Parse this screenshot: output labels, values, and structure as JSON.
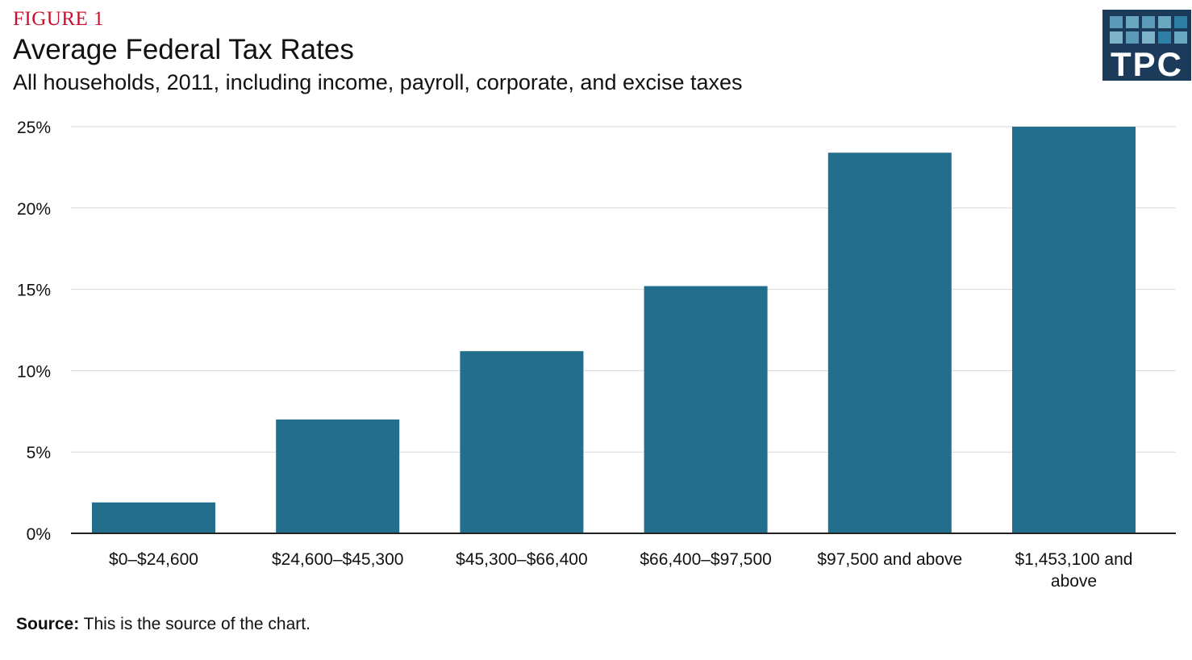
{
  "figure_label": "FIGURE 1",
  "logo_text": "TPC",
  "colors": {
    "bar": "#236e8c",
    "figure_label": "#c8102e",
    "logo_bg": "#1c3a5a",
    "grid": "#d9d9d9",
    "axis": "#222222"
  },
  "source": {
    "label": "Source:",
    "text": " This is the source of the chart."
  },
  "chart_data": {
    "type": "bar",
    "title": "Average Federal Tax Rates",
    "subtitle": "All households, 2011, including income, payroll, corporate, and excise taxes",
    "xlabel": "",
    "ylabel": "",
    "ylim": [
      0,
      25
    ],
    "yticks": [
      0,
      5,
      10,
      15,
      20,
      25
    ],
    "ytick_labels": [
      "0%",
      "5%",
      "10%",
      "15%",
      "20%",
      "25%"
    ],
    "grid": true,
    "categories": [
      [
        "$0–$24,600"
      ],
      [
        "$24,600–$45,300"
      ],
      [
        "$45,300–$66,400"
      ],
      [
        "$66,400–$97,500"
      ],
      [
        "$97,500 and above"
      ],
      [
        "$1,453,100 and",
        "above"
      ]
    ],
    "values": [
      1.9,
      7.0,
      11.2,
      15.2,
      23.4,
      25.0
    ]
  }
}
